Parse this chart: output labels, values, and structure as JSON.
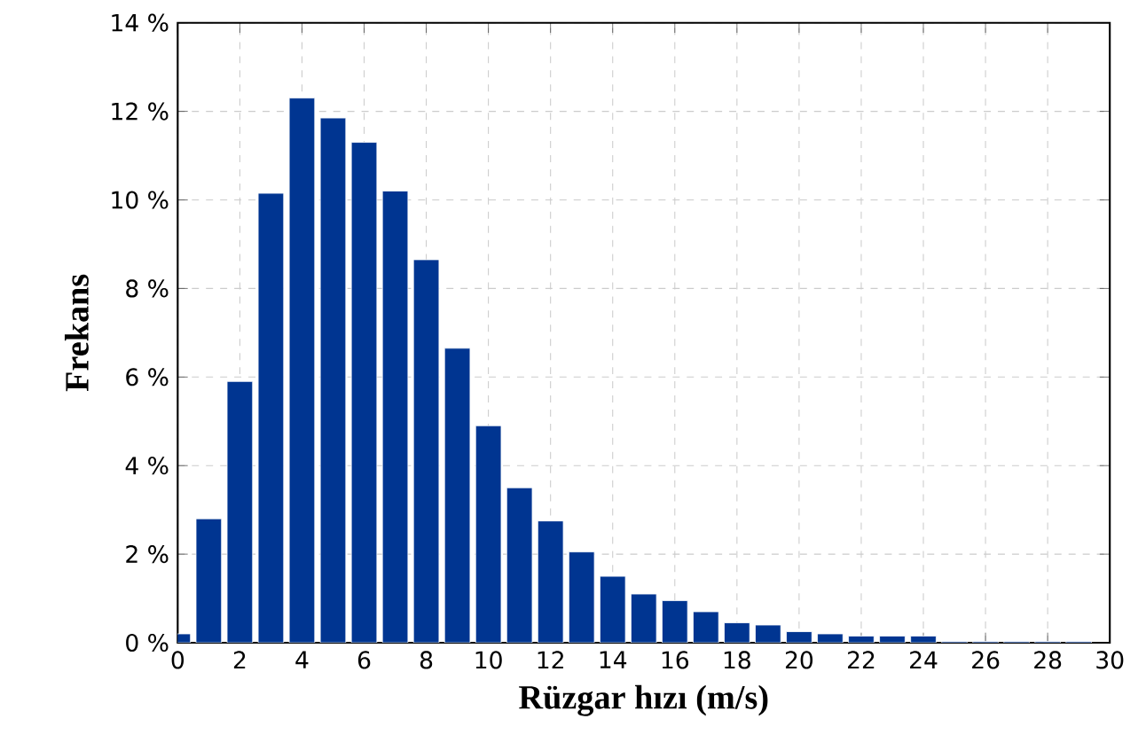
{
  "chart_data": {
    "type": "bar",
    "xlabel": "Rüzgar hızı (m/s)",
    "ylabel": "Frekans",
    "x": [
      0,
      1,
      2,
      3,
      4,
      5,
      6,
      7,
      8,
      9,
      10,
      11,
      12,
      13,
      14,
      15,
      16,
      17,
      18,
      19,
      20,
      21,
      22,
      23,
      24,
      25,
      26,
      27,
      28,
      29
    ],
    "values": [
      0.2,
      2.8,
      5.9,
      10.15,
      12.3,
      11.85,
      11.3,
      10.2,
      8.65,
      6.65,
      4.9,
      3.5,
      2.75,
      2.05,
      1.5,
      1.1,
      0.95,
      0.7,
      0.45,
      0.4,
      0.25,
      0.2,
      0.15,
      0.15,
      0.15,
      0.03,
      0.03,
      0.03,
      0.03,
      0.03
    ],
    "color": "#003591",
    "xlim": [
      0,
      30
    ],
    "ylim": [
      0,
      14
    ],
    "xticks": [
      0,
      2,
      4,
      6,
      8,
      10,
      12,
      14,
      16,
      18,
      20,
      22,
      24,
      26,
      28,
      30
    ],
    "yticks": [
      {
        "value": 0,
        "label": "0 %"
      },
      {
        "value": 2,
        "label": "2 %"
      },
      {
        "value": 4,
        "label": "4 %"
      },
      {
        "value": 6,
        "label": "6 %"
      },
      {
        "value": 8,
        "label": "8 %"
      },
      {
        "value": 10,
        "label": "10 %"
      },
      {
        "value": 12,
        "label": "12 %"
      },
      {
        "value": 14,
        "label": "14 %"
      }
    ],
    "grid": true
  }
}
